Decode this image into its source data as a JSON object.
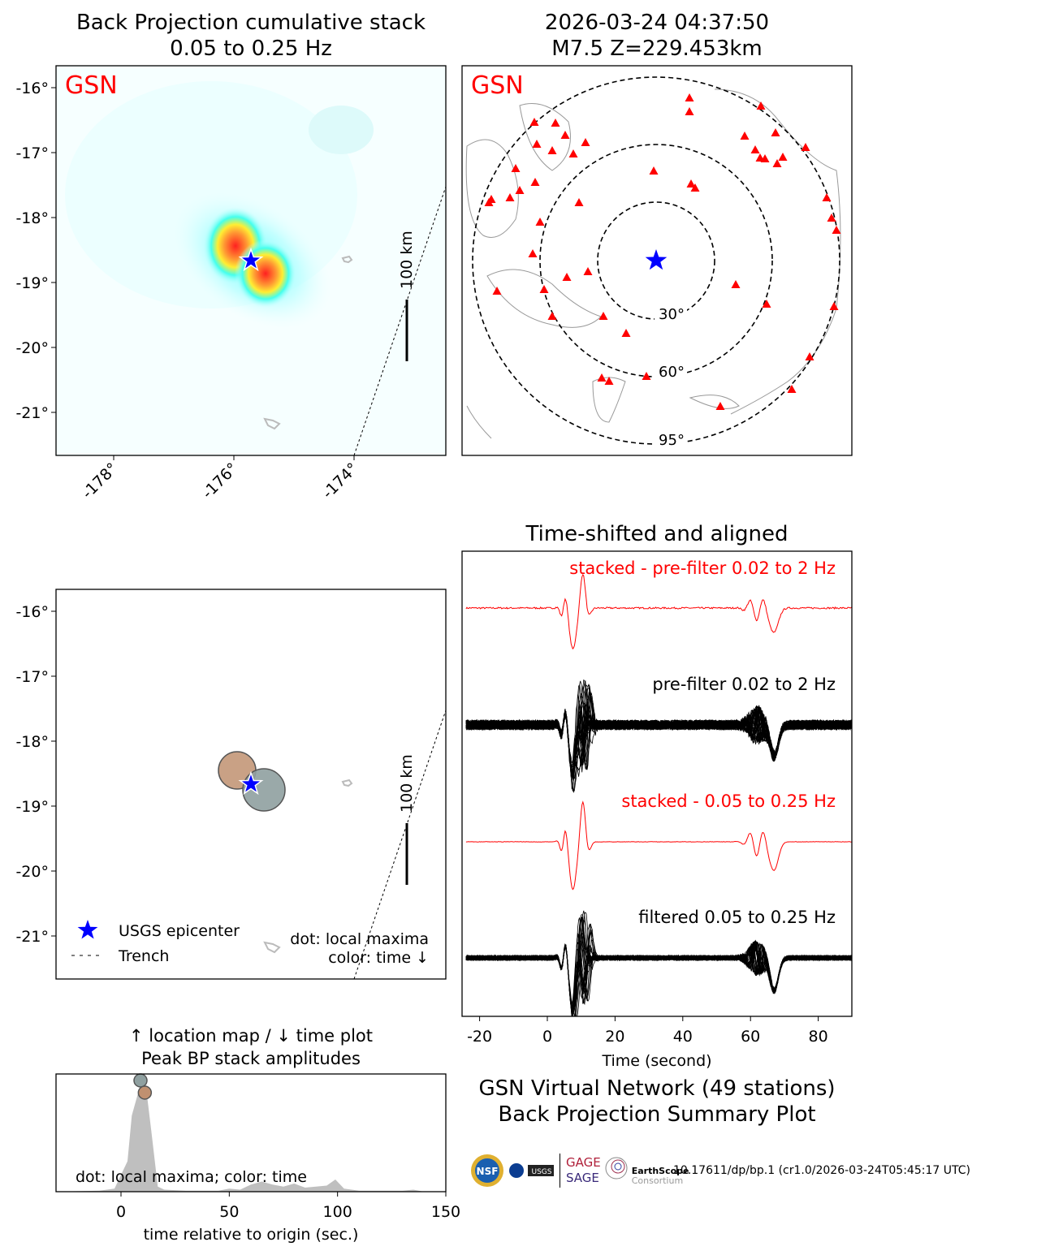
{
  "panels": {
    "bp_stack": {
      "title1": "Back Projection cumulative stack",
      "title2": "0.05 to 0.25 Hz",
      "network": "GSN",
      "scale_label": "100 km"
    },
    "station_map": {
      "title1": "2026-03-24 04:37:50",
      "title2": "M7.5 Z=229.453km",
      "network": "GSN",
      "ring_labels": [
        "30°",
        "60°",
        "95°"
      ]
    },
    "location_map": {
      "scale_label": "100 km",
      "legend_epicenter": "USGS epicenter",
      "legend_trench": "Trench",
      "note1": "dot: local maxima",
      "note2": "color: time ↓"
    },
    "waveforms": {
      "title": "Time-shifted and aligned",
      "labels": [
        "stacked - pre-filter 0.02 to 2 Hz",
        "pre-filter 0.02 to 2 Hz",
        "stacked - 0.05 to 0.25 Hz",
        "filtered 0.05 to 0.25 Hz"
      ],
      "xlabel": "Time (second)",
      "xticks": [
        "-20",
        "0",
        "20",
        "40",
        "60",
        "80"
      ]
    },
    "peak": {
      "title1": "↑ location map / ↓ time plot",
      "title2": "Peak BP stack amplitudes",
      "note": "dot: local maxima; color: time",
      "xlabel": "time relative to origin (sec.)",
      "xticks": [
        "0",
        "50",
        "100",
        "150"
      ]
    }
  },
  "lat_ticks": [
    "-16°",
    "-17°",
    "-18°",
    "-19°",
    "-20°",
    "-21°"
  ],
  "lon_ticks": [
    "-178°",
    "-176°",
    "-174°"
  ],
  "summary": {
    "line1": "GSN Virtual Network (49 stations)",
    "line2": "Back Projection Summary Plot"
  },
  "footer": {
    "doi": "10.17611/dp/bp.1 (cr1.0/2026-03-24T05:45:17 UTC)",
    "logos": [
      "NSF",
      "NASA",
      "USGS",
      "GAGE",
      "SAGE",
      "EarthScope",
      "Consortium"
    ]
  },
  "colors": {
    "accent": "#ff0000",
    "epicenter": "#0000ff",
    "dot_early": "#8fa0a0",
    "dot_late": "#c09070",
    "fill": "#bfbfbf"
  },
  "chart_data": [
    {
      "type": "area",
      "title": "Peak BP stack amplitudes",
      "xlabel": "time relative to origin (sec.)",
      "xlim": [
        -30,
        150
      ],
      "x": [
        -30,
        -10,
        -3,
        3,
        5,
        8,
        10,
        12,
        14,
        17,
        20,
        30,
        45,
        50,
        55,
        60,
        65,
        70,
        75,
        80,
        85,
        90,
        95,
        99,
        103,
        110,
        130,
        135,
        140,
        150
      ],
      "y": [
        0,
        0.01,
        0.03,
        0.3,
        0.75,
        0.98,
        1.0,
        0.95,
        0.6,
        0.05,
        0.02,
        0.01,
        0.01,
        0.03,
        0.02,
        0.07,
        0.1,
        0.07,
        0.05,
        0.08,
        0.04,
        0.05,
        0.06,
        0.12,
        0.03,
        0.01,
        0.01,
        0.02,
        0.0,
        0
      ],
      "maxima": [
        {
          "t": 9,
          "amp": 1.0,
          "color": "#8fa0a0"
        },
        {
          "t": 11,
          "amp": 0.9,
          "color": "#c09070"
        }
      ]
    },
    {
      "type": "line",
      "title": "Time-shifted and aligned",
      "xlabel": "Time (second)",
      "xlim": [
        -24,
        90
      ],
      "series": [
        "stacked - pre-filter 0.02 to 2 Hz",
        "pre-filter 0.02 to 2 Hz (49 traces)",
        "stacked - 0.05 to 0.25 Hz",
        "filtered 0.05 to 0.25 Hz (49 traces)"
      ]
    }
  ]
}
